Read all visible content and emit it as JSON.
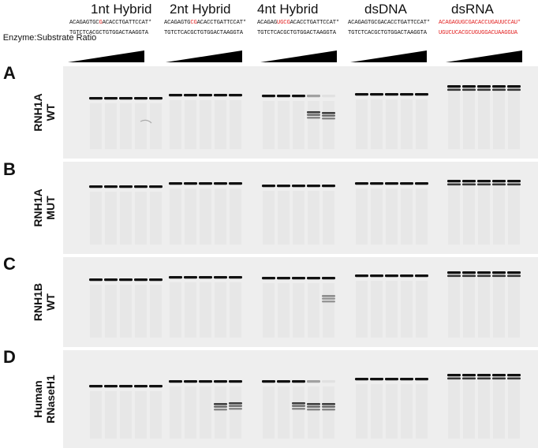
{
  "columns": [
    {
      "title": "1nt Hybrid",
      "seq_top": [
        [
          "ACAGAGTGC",
          ""
        ],
        [
          "G",
          "red"
        ],
        [
          "ACACCTGATTCCAT*",
          ""
        ]
      ],
      "seq_bottom": "TGTCTCACGCTGTGGACTAAGGTA",
      "rna": false
    },
    {
      "title": "2nt Hybrid",
      "seq_top": [
        [
          "ACAGAGTG",
          ""
        ],
        [
          "CG",
          "red"
        ],
        [
          "ACACCTGATTCCAT*",
          ""
        ]
      ],
      "seq_bottom": "TGTCTCACGCTGTGGACTAAGGTA",
      "rna": false
    },
    {
      "title": "4nt Hybrid",
      "seq_top": [
        [
          "ACAGAG",
          ""
        ],
        [
          "UGCG",
          "red"
        ],
        [
          "ACACCTGATTCCAT*",
          ""
        ]
      ],
      "seq_bottom": "TGTCTCACGCTGTGGACTAAGGTA",
      "rna": false
    },
    {
      "title": "dsDNA",
      "seq_top": [
        [
          "ACAGAGTGCGACACCTGATTCCAT*",
          ""
        ]
      ],
      "seq_bottom": "TGTCTCACGCTGTGGACTAAGGTA",
      "rna": false
    },
    {
      "title": "dsRNA",
      "seq_top": [
        [
          "ACAGAGUGCGACACCUGAUUCCAU*",
          "red"
        ]
      ],
      "seq_bottom": "UGUCUCACGCUGUGGACUAAGGUA",
      "rna": true
    }
  ],
  "ratio_label": "Enzyme:Substrate Ratio",
  "panels": [
    {
      "letter": "A",
      "label_line1": "RNH1A",
      "label_line2": "WT"
    },
    {
      "letter": "B",
      "label_line1": "RNH1A",
      "label_line2": "MUT"
    },
    {
      "letter": "C",
      "label_line1": "RNH1B",
      "label_line2": "WT"
    },
    {
      "letter": "D",
      "label_line1": "Human",
      "label_line2": "RNaseH1"
    }
  ],
  "colors": {
    "gel_background": "#eeeeee",
    "band": "#111111",
    "highlight": "#e21f1f"
  }
}
